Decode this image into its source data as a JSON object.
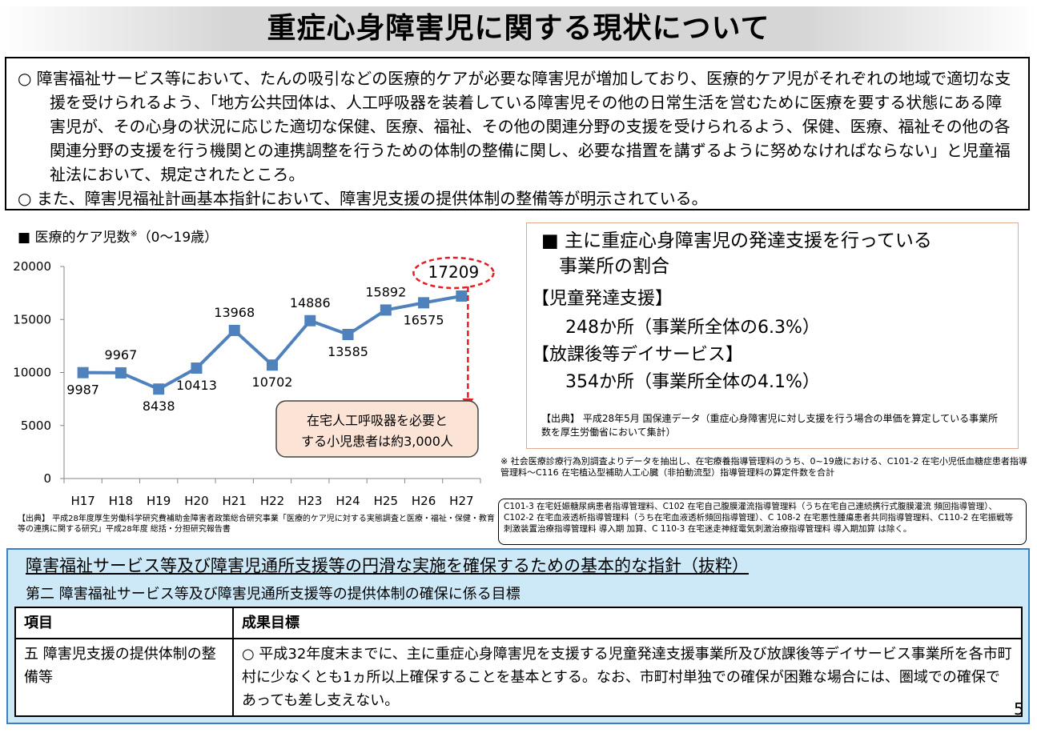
{
  "title": "重症心身障害児に関する現状について",
  "intro": {
    "para1": "○ 障害福祉サービス等において、たんの吸引などの医療的ケアが必要な障害児が増加しており、医療的ケア児がそれぞれの地域で適切な支援を受けられるよう、「地方公共団体は、人工呼吸器を装着している障害児その他の日常生活を営むために医療を要する状態にある障害児が、その心身の状況に応じた適切な保健、医療、福祉、その他の関連分野の支援を受けられるよう、保健、医療、福祉その他の各関連分野の支援を行う機関との連携調整を行うための体制の整備に関し、必要な措置を講ずるように努めなければならない」と児童福祉法において、規定されたところ。",
    "para2": "○ また、障害児福祉計画基本指針において、障害児支援の提供体制の整備等が明示されている。"
  },
  "chart_title": "■ 医療的ケア児数",
  "chart_title_mark": "※",
  "chart_title_range": "（0〜19歳）",
  "chart_data": {
    "type": "line",
    "categories": [
      "H17",
      "H18",
      "H19",
      "H20",
      "H21",
      "H22",
      "H23",
      "H24",
      "H25",
      "H26",
      "H27"
    ],
    "values": [
      9987,
      9967,
      8438,
      10413,
      13968,
      10702,
      14886,
      13585,
      15892,
      16575,
      17209
    ],
    "ylim": [
      0,
      20000
    ],
    "yticks": [
      0,
      5000,
      10000,
      15000,
      20000
    ],
    "line_color": "#4f81bd",
    "highlight_color": "#e31e24",
    "callout": "在宅人工呼吸器を必要とする小児患者は約3,000人"
  },
  "source_left": "【出典】 平成28年度厚生労働科学研究費補助金障害者政策総合研究事業「医療的ケア児に対する実態調査と医療・福祉・保健・教育等の連携に関する研究」平成28年度 総括・分担研究報告書",
  "right_box": {
    "heading_line1": "■ 主に重症心身障害児の発達支援を行っている",
    "heading_line2": "事業所の割合",
    "item1_label": "【児童発達支援】",
    "item1_value": "248か所（事業所全体の6.3%）",
    "item2_label": "【放課後等デイサービス】",
    "item2_value": "354か所（事業所全体の4.1%）",
    "source": "【出典】 平成28年5月 国保連データ（重症心身障害児に対し支援を行う場合の単価を算定している事業所数を厚生労働省において集計）"
  },
  "note1": "※ 社会医療診療行為別調査よりデータを抽出し、在宅療養指導管理料のうち、0~19歳における、C101-2 在宅小児低血糖症患者指導管理料〜C116 在宅植込型補助人工心臓（非拍動流型）指導管理料の算定件数を合計",
  "note2": "C101-3 在宅妊娠糖尿病患者指導管理料、C102 在宅自己腹膜灌流指導管理料（うち在宅自己連続携行式腹膜灌流 頻回指導管理）、C102-2 在宅血液透析指導管理料（うち在宅血液透析頻回指導管理）、C 108-2 在宅悪性腫瘍患者共同指導管理料、C110-2 在宅振戦等刺激装置治療指導管理料 導入期 加算、C 110-3 在宅迷走神経電気刺激治療指導管理料 導入期加算 は除く。",
  "bottom": {
    "title": "障害福祉サービス等及び障害児通所支援等の円滑な実施を確保するための基本的な指針（抜粋）",
    "subtitle": "第二 障害福祉サービス等及び障害児通所支援等の提供体制の確保に係る目標",
    "col1_header": "項目",
    "col2_header": "成果目標",
    "row_item": "五 障害児支援の提供体制の整備等",
    "row_goal": "○ 平成32年度末までに、主に重症心身障害児を支援する児童発達支援事業所及び放課後等デイサービス事業所を各市町村に少なくとも1ヵ所以上確保することを基本とする。なお、市町村単独での確保が困難な場合には、圏域での確保であっても差し支えない。"
  },
  "page_number": "5"
}
